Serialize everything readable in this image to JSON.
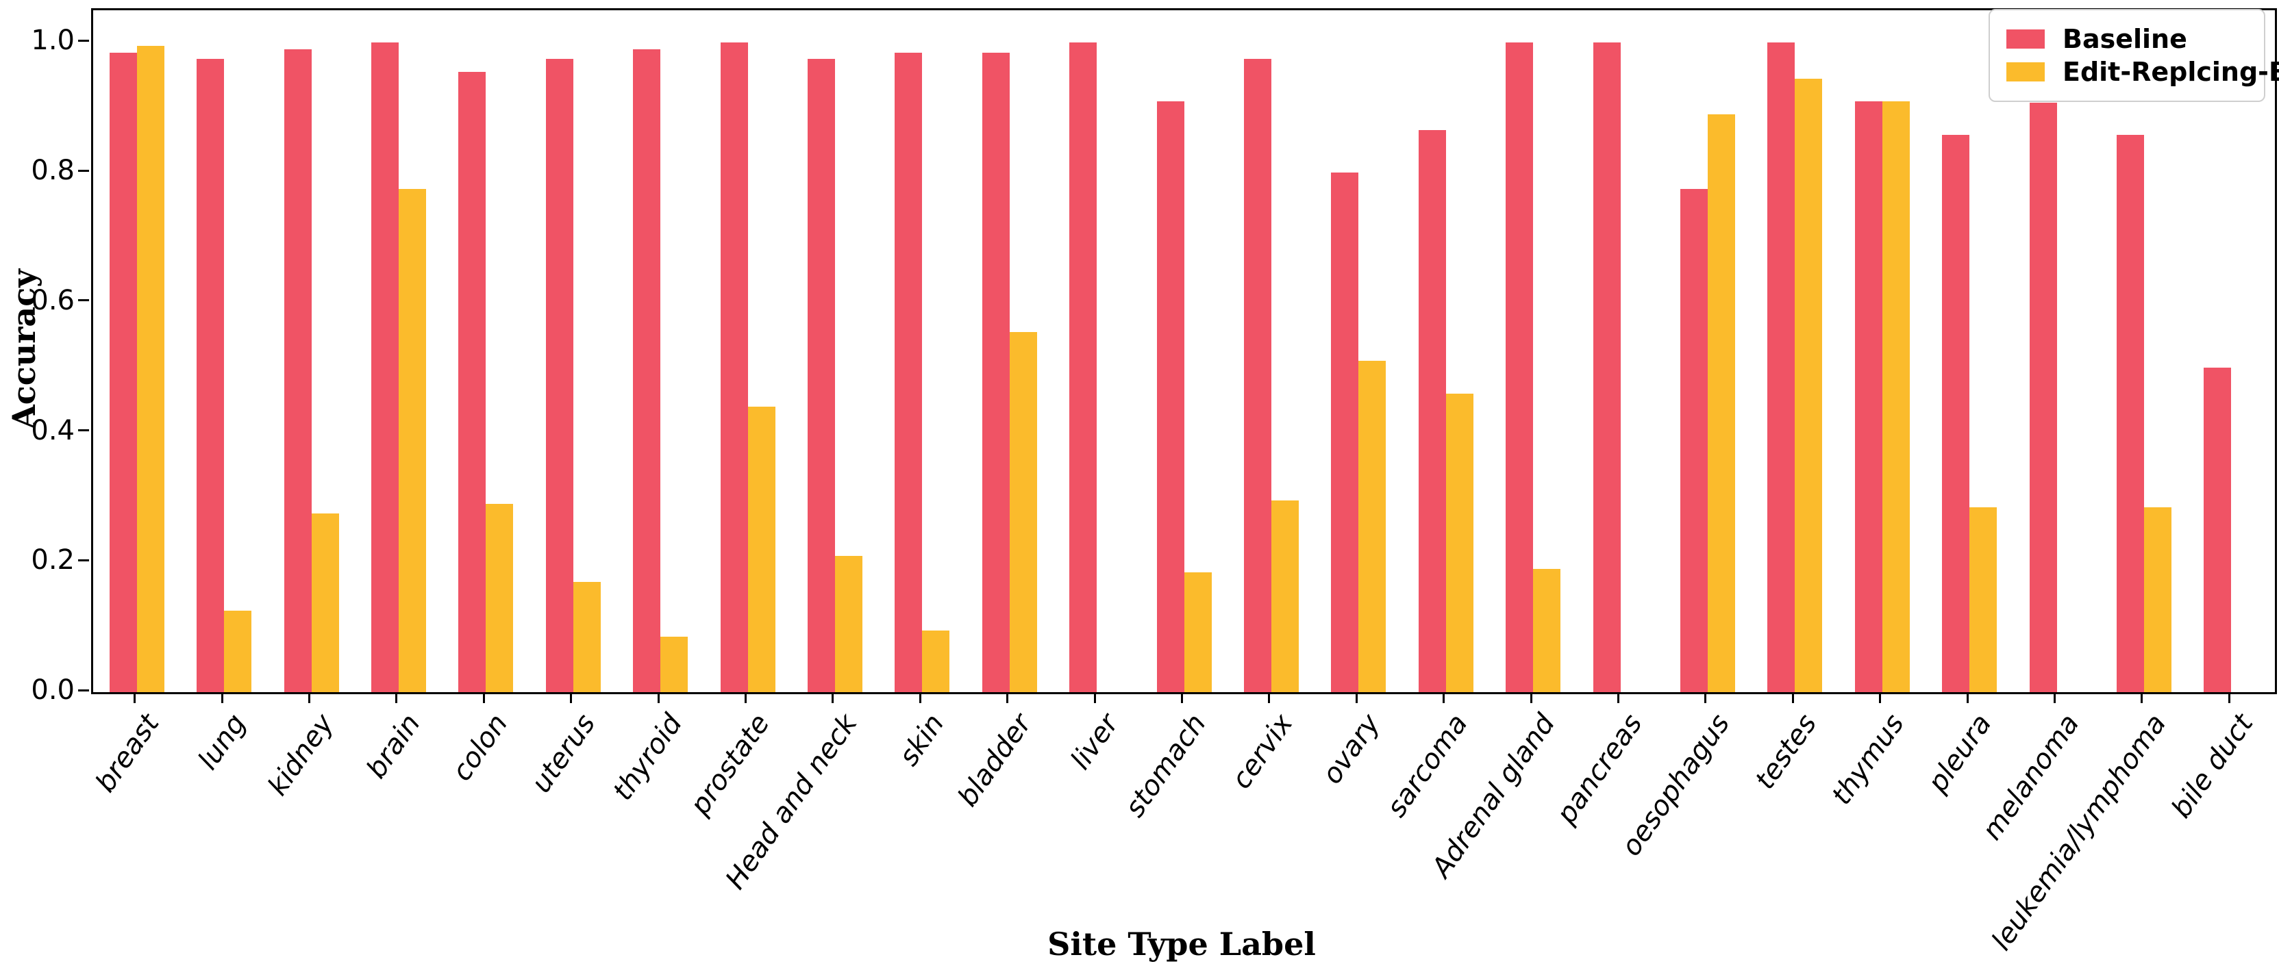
{
  "chart_data": {
    "type": "bar",
    "title": "",
    "xlabel": "Site Type Label",
    "ylabel": "Accuracy",
    "ylim": [
      0,
      1.05
    ],
    "yticks": [
      0.0,
      0.2,
      0.4,
      0.6,
      0.8,
      1.0
    ],
    "ytick_labels": [
      "0.0",
      "0.2",
      "0.4",
      "0.6",
      "0.8",
      "1.0"
    ],
    "grid": false,
    "legend_position": "upper right",
    "categories": [
      "breast",
      "lung",
      "kidney",
      "brain",
      "colon",
      "uterus",
      "thyroid",
      "prostate",
      "Head and neck",
      "skin",
      "bladder",
      "liver",
      "stomach",
      "cervix",
      "ovary",
      "sarcoma",
      "Adrenal gland",
      "pancreas",
      "oesophagus",
      "testes",
      "thymus",
      "pleura",
      "melanoma",
      "leukemia/lymphoma",
      "bile duct"
    ],
    "series": [
      {
        "name": "Baseline",
        "color": "#F05365",
        "values": [
          0.985,
          0.975,
          0.99,
          1.0,
          0.955,
          0.975,
          0.99,
          1.0,
          0.975,
          0.985,
          0.985,
          1.0,
          0.91,
          0.975,
          0.8,
          0.865,
          1.0,
          1.0,
          0.775,
          1.0,
          0.91,
          0.858,
          0.908,
          0.858,
          0.5
        ]
      },
      {
        "name": "Edit-Replcing-Breast",
        "color": "#FBBB2C",
        "values": [
          0.995,
          0.125,
          0.275,
          0.775,
          0.29,
          0.17,
          0.085,
          0.44,
          0.21,
          0.095,
          0.555,
          null,
          0.185,
          0.295,
          0.51,
          0.46,
          0.19,
          null,
          0.89,
          0.945,
          0.91,
          0.285,
          null,
          0.285,
          null
        ]
      }
    ]
  },
  "legend": {
    "items": [
      {
        "label": "Baseline",
        "color": "#F05365"
      },
      {
        "label": "Edit-Replcing-Breast",
        "color": "#FBBB2C"
      }
    ]
  }
}
